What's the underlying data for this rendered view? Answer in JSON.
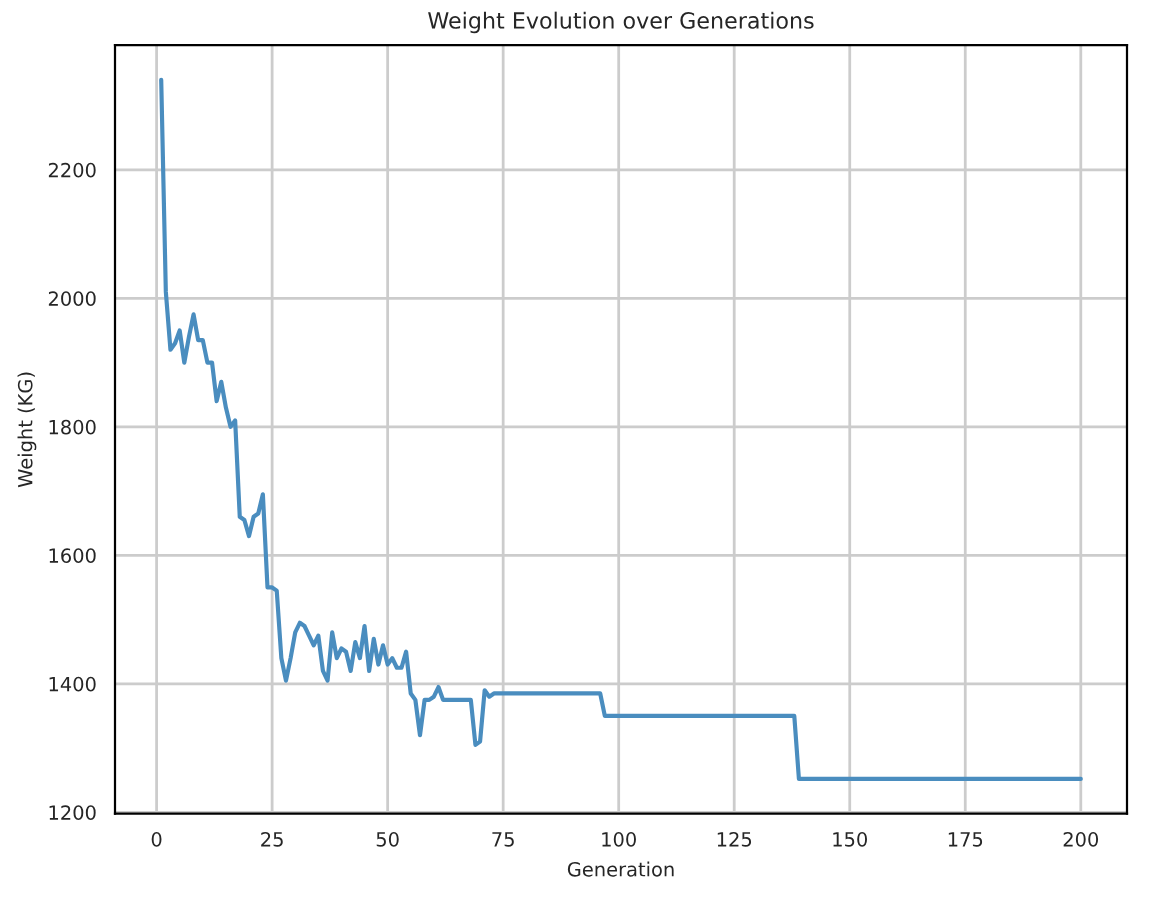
{
  "chart_data": {
    "type": "line",
    "title": "Weight Evolution over Generations",
    "xlabel": "Generation",
    "ylabel": "Weight (KG)",
    "x": [
      1,
      2,
      3,
      4,
      5,
      6,
      7,
      8,
      9,
      10,
      11,
      12,
      13,
      14,
      15,
      16,
      17,
      18,
      19,
      20,
      21,
      22,
      23,
      24,
      25,
      26,
      27,
      28,
      29,
      30,
      31,
      32,
      33,
      34,
      35,
      36,
      37,
      38,
      39,
      40,
      41,
      42,
      43,
      44,
      45,
      46,
      47,
      48,
      49,
      50,
      51,
      52,
      53,
      54,
      55,
      56,
      57,
      58,
      59,
      60,
      61,
      62,
      68,
      69,
      70,
      71,
      72,
      73,
      96,
      97,
      138,
      139,
      200
    ],
    "series": [
      {
        "color": "#4a8dbf",
        "values": [
          2340,
          2010,
          1920,
          1930,
          1950,
          1900,
          1940,
          1975,
          1935,
          1935,
          1900,
          1900,
          1840,
          1870,
          1830,
          1800,
          1810,
          1660,
          1655,
          1630,
          1660,
          1665,
          1695,
          1550,
          1550,
          1545,
          1440,
          1405,
          1440,
          1480,
          1495,
          1490,
          1475,
          1460,
          1475,
          1420,
          1405,
          1480,
          1440,
          1455,
          1450,
          1420,
          1465,
          1440,
          1490,
          1420,
          1470,
          1430,
          1460,
          1430,
          1440,
          1425,
          1425,
          1450,
          1385,
          1375,
          1320,
          1375,
          1375,
          1380,
          1395,
          1375,
          1375,
          1305,
          1310,
          1390,
          1380,
          1385,
          1385,
          1350,
          1350,
          1252,
          1252
        ]
      }
    ],
    "xlim": [
      -9,
      210
    ],
    "ylim": [
      1198,
      2394
    ],
    "xticks": [
      0,
      25,
      50,
      75,
      100,
      125,
      150,
      175,
      200
    ],
    "yticks": [
      1200,
      1400,
      1600,
      1800,
      2000,
      2200
    ],
    "grid": true,
    "marker": "none",
    "line_style": "solid"
  }
}
